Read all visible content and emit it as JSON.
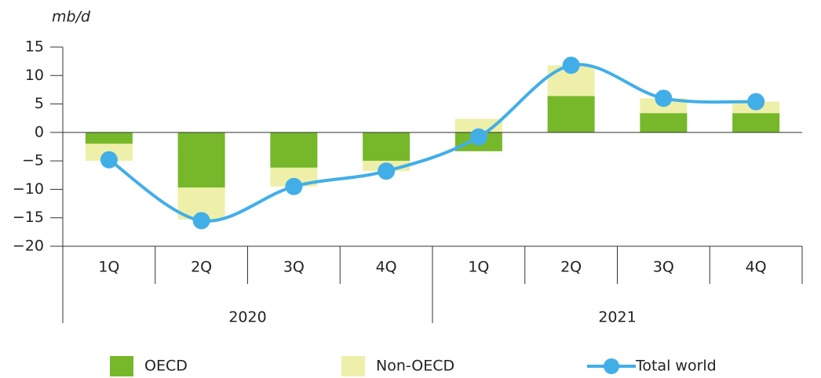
{
  "chart_data": {
    "type": "stacked_bar_line",
    "y_unit": "mb/d",
    "categories": [
      "1Q",
      "2Q",
      "3Q",
      "4Q",
      "1Q",
      "2Q",
      "3Q",
      "4Q"
    ],
    "groups": [
      "2020",
      "2021"
    ],
    "series": [
      {
        "name": "OECD",
        "type": "bar",
        "color": "#76b82a",
        "values": [
          -2,
          -9.7,
          -6.2,
          -5,
          -3.3,
          6.4,
          3.4,
          3.4
        ]
      },
      {
        "name": "Non-OECD",
        "type": "bar",
        "color": "#eef0a9",
        "values": [
          -3,
          -5.6,
          -3.3,
          -1.8,
          2.4,
          5.4,
          2.6,
          2
        ]
      },
      {
        "name": "Total world",
        "type": "line",
        "color": "#42aee8",
        "values": [
          -4.8,
          -15.5,
          -9.5,
          -6.8,
          -0.8,
          11.8,
          6,
          5.4
        ]
      }
    ],
    "ylim": [
      -20,
      15
    ],
    "yticks": [
      {
        "value": -20,
        "label": "−20"
      },
      {
        "value": -15,
        "label": "−15"
      },
      {
        "value": -10,
        "label": "−10"
      },
      {
        "value": -5,
        "label": "−5"
      },
      0,
      5,
      10,
      15
    ]
  }
}
